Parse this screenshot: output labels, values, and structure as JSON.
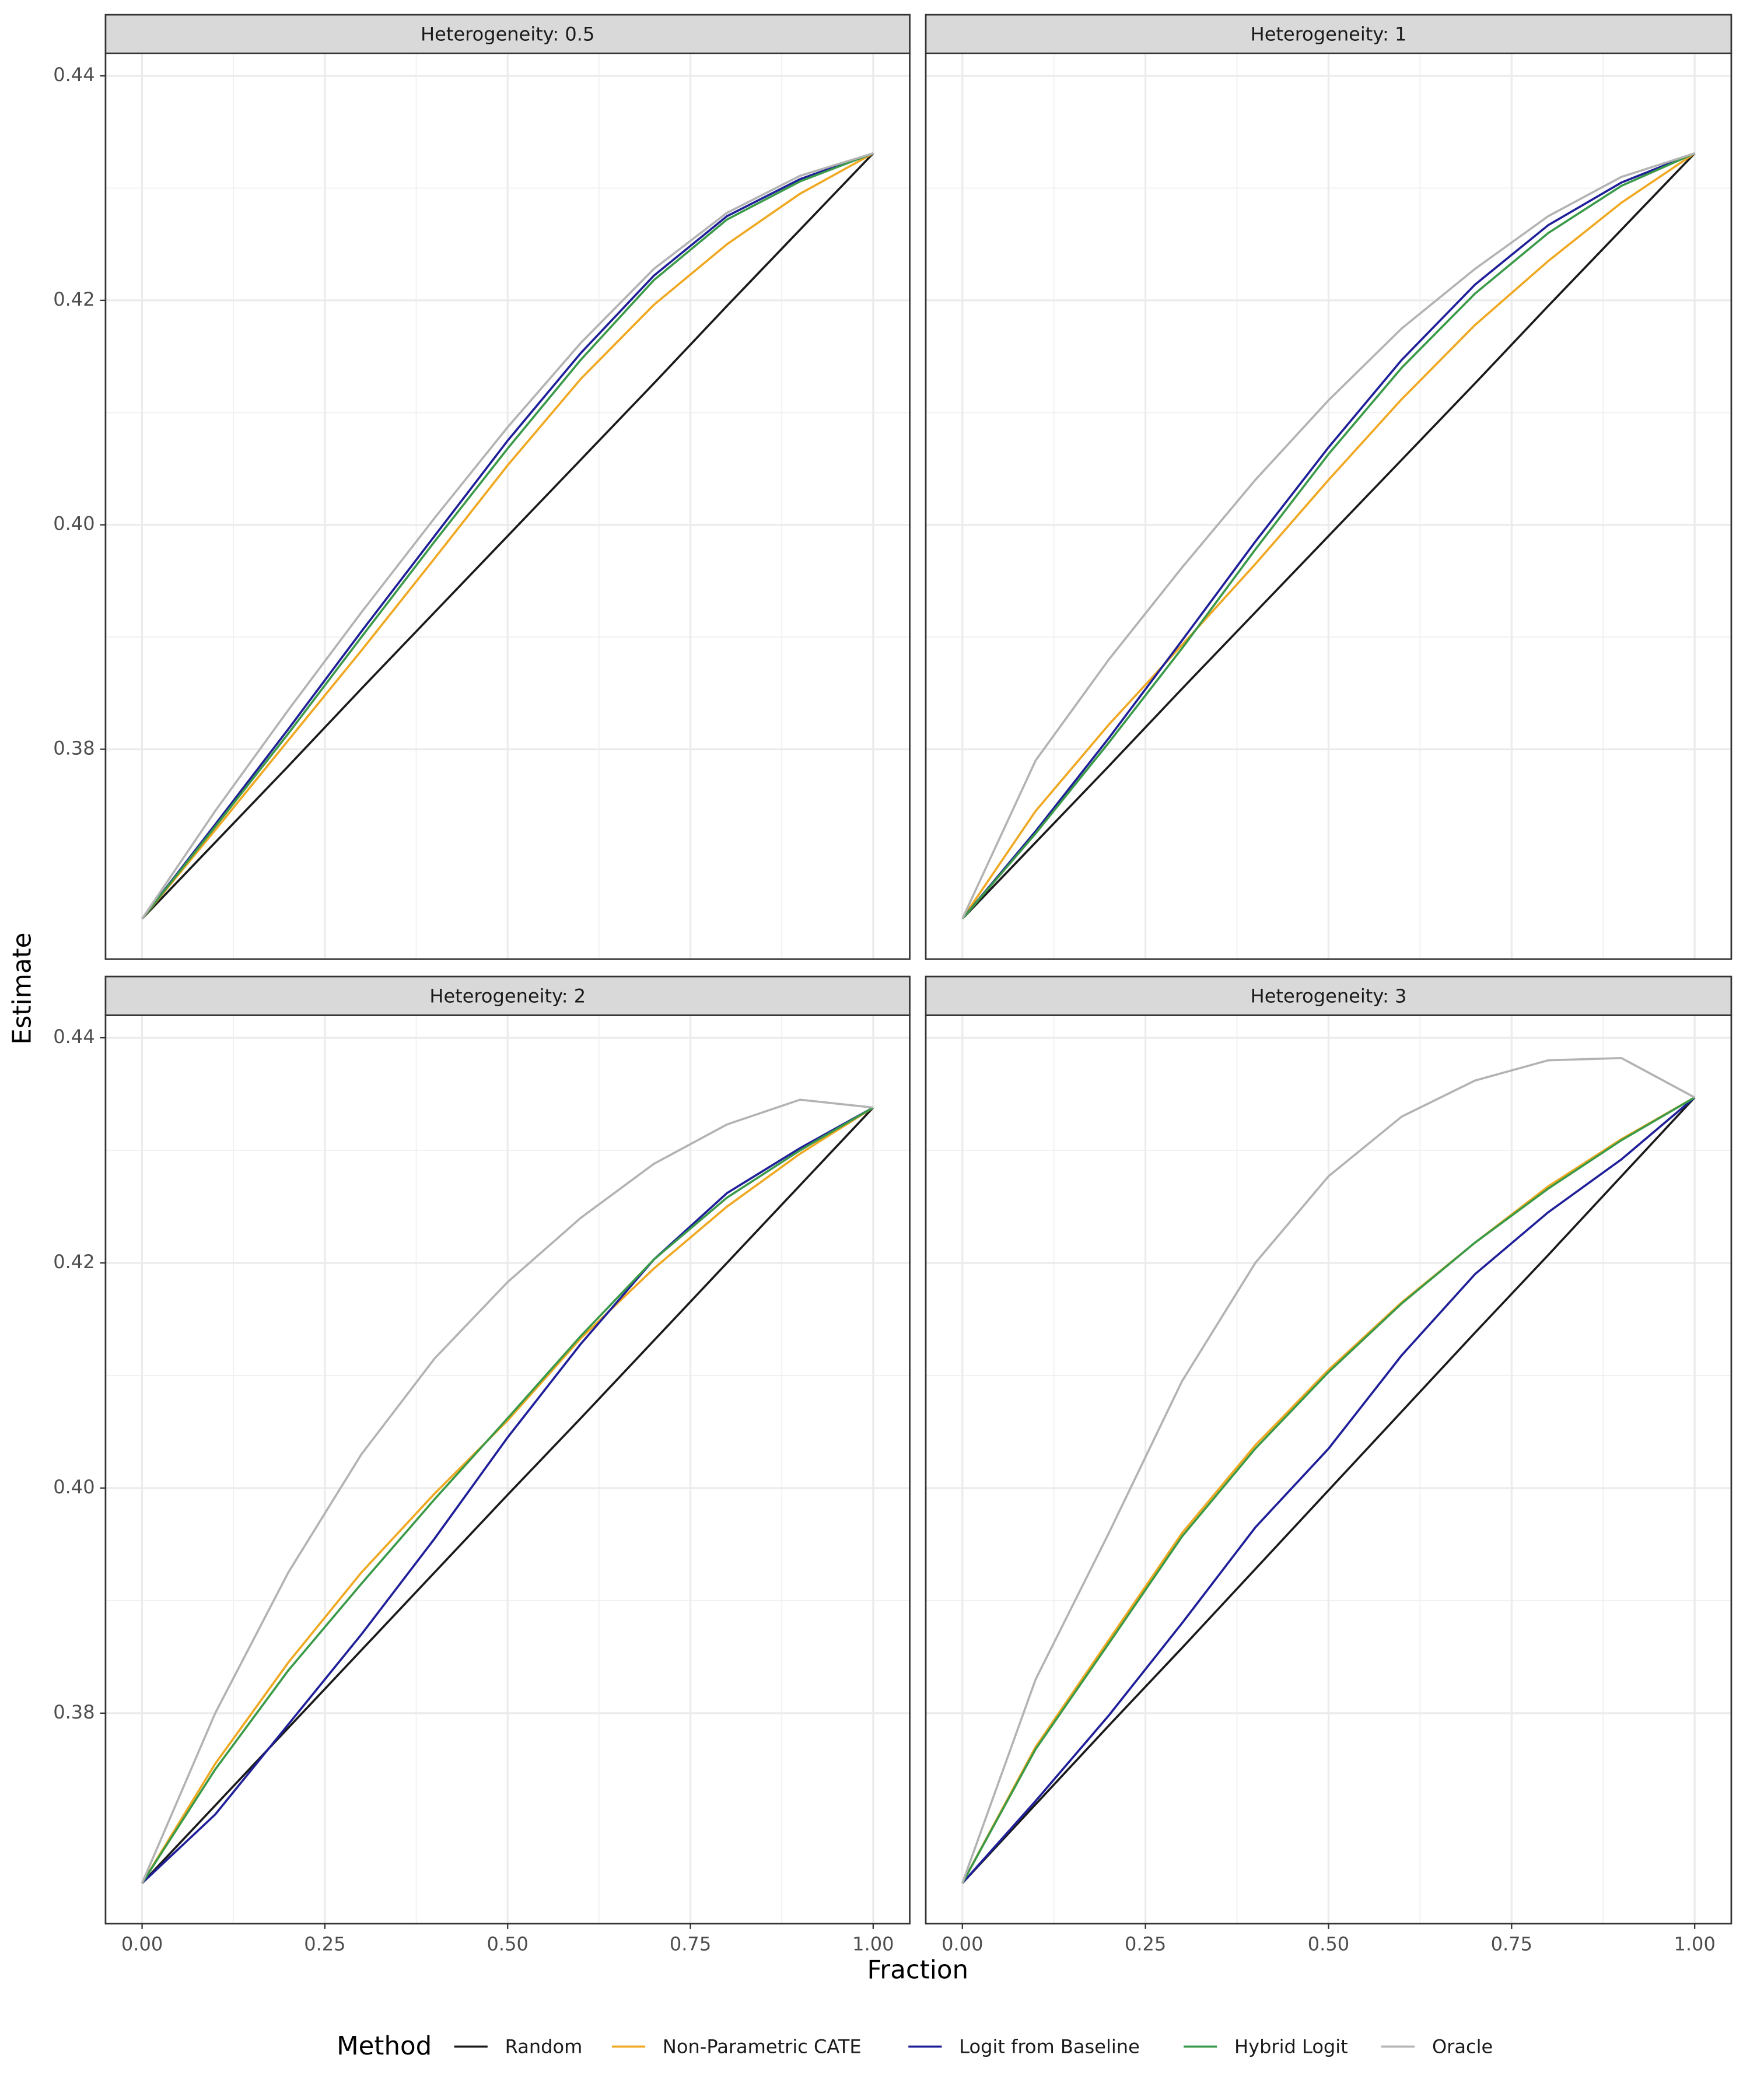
{
  "xlabel": "Fraction",
  "ylabel": "Estimate",
  "legend_title": "Method",
  "chart_data": [
    {
      "type": "line",
      "title": "Heterogeneity: 0.5",
      "x": [
        0,
        0.1,
        0.2,
        0.3,
        0.4,
        0.5,
        0.6,
        0.7,
        0.8,
        0.9,
        1
      ],
      "xlim": [
        -0.05,
        1.05
      ],
      "ylim": [
        0.3613,
        0.442
      ],
      "xticks": [
        {
          "value": 0,
          "label": "0.00"
        },
        0.25,
        {
          "value": 0.5,
          "label": "0.50"
        },
        0.75,
        {
          "value": 1,
          "label": "1.00"
        }
      ],
      "yticks": [
        0.38,
        {
          "value": 0.4,
          "label": "0.40"
        },
        0.42,
        0.44
      ],
      "grid": true,
      "series": [
        {
          "name": "Random",
          "color": "#1a1a1a",
          "values": [
            0.3649,
            0.3717,
            0.3785,
            0.3854,
            0.3922,
            0.399,
            0.4058,
            0.4126,
            0.4195,
            0.4263,
            0.4331
          ]
        },
        {
          "name": "Non-Parametric CATE",
          "color": "#f0a821",
          "values": [
            0.3649,
            0.3728,
            0.3808,
            0.3888,
            0.397,
            0.4053,
            0.413,
            0.4196,
            0.425,
            0.4295,
            0.4331
          ]
        },
        {
          "name": "Logit from Baseline",
          "color": "#1f1f99",
          "values": [
            0.3649,
            0.3733,
            0.3818,
            0.3905,
            0.399,
            0.4075,
            0.4153,
            0.4222,
            0.4275,
            0.4308,
            0.4331
          ]
        },
        {
          "name": "Hybrid Logit",
          "color": "#3a9a48",
          "values": [
            0.3649,
            0.3731,
            0.3814,
            0.39,
            0.3985,
            0.4068,
            0.4147,
            0.4218,
            0.4272,
            0.4306,
            0.4331
          ]
        },
        {
          "name": "Oracle",
          "color": "#b3b3b3",
          "values": [
            0.3649,
            0.3745,
            0.3835,
            0.3922,
            0.4006,
            0.4087,
            0.4162,
            0.4228,
            0.4278,
            0.4311,
            0.4331
          ]
        }
      ]
    },
    {
      "type": "line",
      "title": "Heterogeneity: 1",
      "x": [
        0,
        0.1,
        0.2,
        0.3,
        0.4,
        0.5,
        0.6,
        0.7,
        0.8,
        0.9,
        1
      ],
      "xlim": [
        -0.05,
        1.05
      ],
      "ylim": [
        0.3613,
        0.442
      ],
      "xticks": [
        {
          "value": 0,
          "label": "0.00"
        },
        0.25,
        {
          "value": 0.5,
          "label": "0.50"
        },
        0.75,
        {
          "value": 1,
          "label": "1.00"
        }
      ],
      "yticks": [
        0.38,
        {
          "value": 0.4,
          "label": "0.40"
        },
        0.42,
        0.44
      ],
      "grid": true,
      "series": [
        {
          "name": "Random",
          "color": "#1a1a1a",
          "values": [
            0.3649,
            0.3717,
            0.3785,
            0.3854,
            0.3922,
            0.399,
            0.4058,
            0.4126,
            0.4195,
            0.4263,
            0.4331
          ]
        },
        {
          "name": "Non-Parametric CATE",
          "color": "#f0a821",
          "values": [
            0.3649,
            0.3745,
            0.3822,
            0.3893,
            0.3965,
            0.404,
            0.4112,
            0.4178,
            0.4235,
            0.4287,
            0.4331
          ]
        },
        {
          "name": "Logit from Baseline",
          "color": "#1f1f99",
          "values": [
            0.3649,
            0.3727,
            0.381,
            0.3897,
            0.3985,
            0.4069,
            0.4147,
            0.4214,
            0.4267,
            0.4305,
            0.4331
          ]
        },
        {
          "name": "Hybrid Logit",
          "color": "#3a9a48",
          "values": [
            0.3649,
            0.3725,
            0.3806,
            0.389,
            0.3978,
            0.4063,
            0.414,
            0.4206,
            0.426,
            0.4302,
            0.4331
          ]
        },
        {
          "name": "Oracle",
          "color": "#b3b3b3",
          "values": [
            0.3649,
            0.379,
            0.388,
            0.3962,
            0.404,
            0.4111,
            0.4175,
            0.4228,
            0.4275,
            0.431,
            0.4331
          ]
        }
      ]
    },
    {
      "type": "line",
      "title": "Heterogeneity: 2",
      "x": [
        0,
        0.1,
        0.2,
        0.3,
        0.4,
        0.5,
        0.6,
        0.7,
        0.8,
        0.9,
        1
      ],
      "xlim": [
        -0.05,
        1.05
      ],
      "ylim": [
        0.3613,
        0.442
      ],
      "xticks": [
        {
          "value": 0,
          "label": "0.00"
        },
        0.25,
        {
          "value": 0.5,
          "label": "0.50"
        },
        0.75,
        {
          "value": 1,
          "label": "1.00"
        }
      ],
      "yticks": [
        0.38,
        {
          "value": 0.4,
          "label": "0.40"
        },
        0.42,
        0.44
      ],
      "grid": true,
      "series": [
        {
          "name": "Random",
          "color": "#1a1a1a",
          "values": [
            0.3649,
            0.3718,
            0.3787,
            0.3856,
            0.3925,
            0.3994,
            0.4062,
            0.4131,
            0.42,
            0.4269,
            0.4338
          ]
        },
        {
          "name": "Non-Parametric CATE",
          "color": "#f0a821",
          "values": [
            0.3649,
            0.3755,
            0.3845,
            0.3925,
            0.3995,
            0.406,
            0.4133,
            0.4195,
            0.425,
            0.4297,
            0.4338
          ]
        },
        {
          "name": "Logit from Baseline",
          "color": "#1f1f99",
          "values": [
            0.3649,
            0.371,
            0.379,
            0.387,
            0.3955,
            0.4045,
            0.4128,
            0.4203,
            0.4262,
            0.4302,
            0.4338
          ]
        },
        {
          "name": "Hybrid Logit",
          "color": "#3a9a48",
          "values": [
            0.3649,
            0.375,
            0.3838,
            0.3915,
            0.399,
            0.4062,
            0.4135,
            0.4203,
            0.4258,
            0.43,
            0.4338
          ]
        },
        {
          "name": "Oracle",
          "color": "#b3b3b3",
          "values": [
            0.3649,
            0.38,
            0.3925,
            0.403,
            0.4115,
            0.4183,
            0.424,
            0.4288,
            0.4323,
            0.4345,
            0.4338
          ]
        }
      ]
    },
    {
      "type": "line",
      "title": "Heterogeneity: 3",
      "x": [
        0,
        0.1,
        0.2,
        0.3,
        0.4,
        0.5,
        0.6,
        0.7,
        0.8,
        0.9,
        1
      ],
      "xlim": [
        -0.05,
        1.05
      ],
      "ylim": [
        0.3613,
        0.442
      ],
      "xticks": [
        {
          "value": 0,
          "label": "0.00"
        },
        0.25,
        {
          "value": 0.5,
          "label": "0.50"
        },
        0.75,
        {
          "value": 1,
          "label": "1.00"
        }
      ],
      "yticks": [
        0.38,
        {
          "value": 0.4,
          "label": "0.40"
        },
        0.42,
        0.44
      ],
      "grid": true,
      "series": [
        {
          "name": "Random",
          "color": "#1a1a1a",
          "values": [
            0.3649,
            0.3719,
            0.3789,
            0.3858,
            0.3928,
            0.3998,
            0.4068,
            0.4138,
            0.4207,
            0.4277,
            0.4347
          ]
        },
        {
          "name": "Non-Parametric CATE",
          "color": "#f0a821",
          "values": [
            0.3649,
            0.377,
            0.3865,
            0.396,
            0.4038,
            0.4105,
            0.4165,
            0.4218,
            0.4268,
            0.431,
            0.4347
          ]
        },
        {
          "name": "Logit from Baseline",
          "color": "#1f1f99",
          "values": [
            0.3649,
            0.3722,
            0.3798,
            0.388,
            0.3965,
            0.4035,
            0.4118,
            0.419,
            0.4245,
            0.4292,
            0.4347
          ]
        },
        {
          "name": "Hybrid Logit",
          "color": "#3a9a48",
          "values": [
            0.3649,
            0.3768,
            0.3862,
            0.3957,
            0.4035,
            0.4103,
            0.4164,
            0.4218,
            0.4266,
            0.4309,
            0.4347
          ]
        },
        {
          "name": "Oracle",
          "color": "#b3b3b3",
          "values": [
            0.3649,
            0.383,
            0.396,
            0.4095,
            0.42,
            0.4277,
            0.433,
            0.4362,
            0.438,
            0.4382,
            0.4347
          ]
        }
      ]
    }
  ]
}
